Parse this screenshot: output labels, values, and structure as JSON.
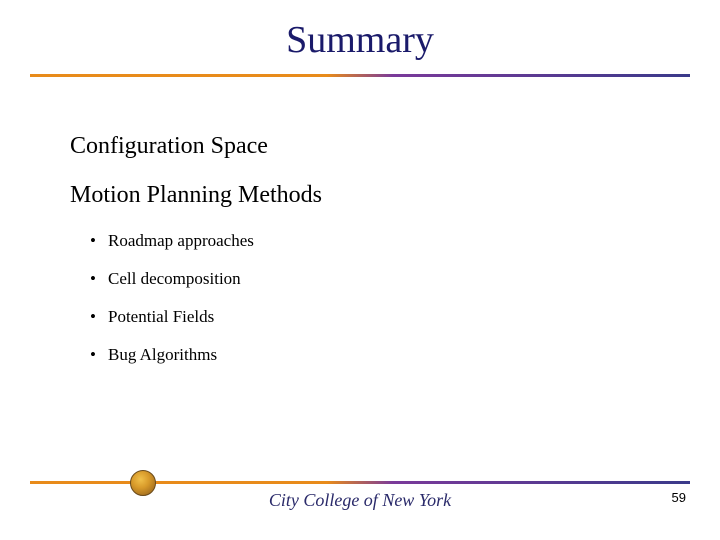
{
  "title": "Summary",
  "sections": [
    {
      "heading": "Configuration Space"
    },
    {
      "heading": "Motion Planning Methods"
    }
  ],
  "bullets": [
    "Roadmap approaches",
    "Cell decomposition",
    "Potential Fields",
    "Bug Algorithms"
  ],
  "footer": {
    "institution": "City College of New York",
    "page_number": "59"
  },
  "colors": {
    "title_color": "#1a1a6a",
    "rule_gradient_start": "#e88b1a",
    "rule_gradient_end": "#3a3a8a",
    "footer_text_color": "#2a2a6a",
    "background": "#ffffff"
  },
  "typography": {
    "title_fontsize": 38,
    "section_fontsize": 24,
    "bullet_fontsize": 17,
    "footer_fontsize": 18,
    "pagenum_fontsize": 13,
    "font_family": "Times New Roman"
  }
}
